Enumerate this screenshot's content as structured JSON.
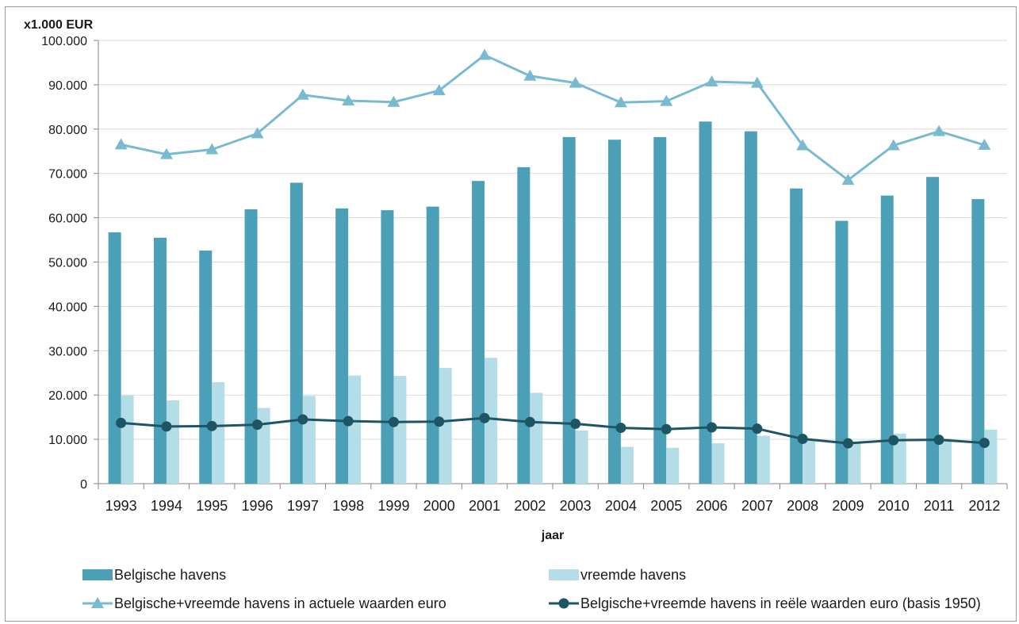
{
  "chart_data": {
    "type": "bar",
    "ylabel": "x1.000 EUR",
    "xlabel": "jaar",
    "ylim": [
      0,
      100000
    ],
    "ytick_step": 10000,
    "ytick_labels": [
      "0",
      "10.000",
      "20.000",
      "30.000",
      "40.000",
      "50.000",
      "60.000",
      "70.000",
      "80.000",
      "90.000",
      "100.000"
    ],
    "grid": "horizontal",
    "legend_position": "bottom",
    "categories": [
      "1993",
      "1994",
      "1995",
      "1996",
      "1997",
      "1998",
      "1999",
      "2000",
      "2001",
      "2002",
      "2003",
      "2004",
      "2005",
      "2006",
      "2007",
      "2008",
      "2009",
      "2010",
      "2011",
      "2012"
    ],
    "series": [
      {
        "name": "Belgische havens",
        "kind": "bar",
        "color": "#4ba0b8",
        "values": [
          56700,
          55500,
          52600,
          61900,
          67900,
          62100,
          61700,
          62500,
          68300,
          71400,
          78200,
          77600,
          78200,
          81700,
          79500,
          66600,
          59300,
          65000,
          69200,
          64200
        ]
      },
      {
        "name": "vreemde havens",
        "kind": "bar",
        "color": "#b4dde8",
        "values": [
          19900,
          18800,
          22900,
          17100,
          19800,
          24400,
          24300,
          26100,
          28400,
          20500,
          12000,
          8300,
          8100,
          9100,
          10800,
          9900,
          9400,
          11300,
          10200,
          12200
        ]
      },
      {
        "name": "Belgische+vreemde havens in actuele waarden euro",
        "kind": "line",
        "marker": "triangle",
        "color": "#79bad1",
        "values": [
          76500,
          74300,
          75400,
          79000,
          87700,
          86400,
          86100,
          88700,
          96700,
          92000,
          90400,
          86000,
          86300,
          90700,
          90400,
          76300,
          68500,
          76300,
          79500,
          76400
        ]
      },
      {
        "name": "Belgische+vreemde havens in reële waarden euro (basis 1950)",
        "kind": "line",
        "marker": "circle",
        "color": "#1e5565",
        "values": [
          13700,
          12900,
          13000,
          13300,
          14500,
          14100,
          13900,
          14000,
          14800,
          13900,
          13500,
          12600,
          12300,
          12700,
          12400,
          10100,
          9100,
          9800,
          9900,
          9200
        ]
      }
    ]
  }
}
